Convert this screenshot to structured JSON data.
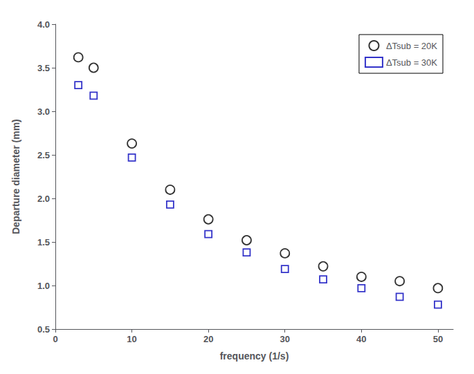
{
  "chart_data": {
    "type": "scatter",
    "x_label": "frequency (1/s)",
    "y_label": "Departure diameter (mm)",
    "x": [
      3,
      5,
      10,
      15,
      20,
      25,
      30,
      35,
      40,
      45,
      50
    ],
    "series": [
      {
        "name": "ΔTsub = 20K",
        "color": "#000000",
        "marker": "circle",
        "values": [
          3.62,
          3.5,
          2.63,
          2.1,
          1.76,
          1.52,
          1.37,
          1.22,
          1.1,
          1.05,
          0.97
        ]
      },
      {
        "name": "ΔTsub = 30K",
        "color": "#0000bb",
        "marker": "square",
        "values": [
          3.3,
          3.18,
          2.47,
          1.93,
          1.59,
          1.38,
          1.19,
          1.07,
          0.97,
          0.87,
          0.78
        ]
      }
    ],
    "xlim": [
      0,
      52
    ],
    "ylim": [
      0.5,
      4.0
    ],
    "xticks": [
      0,
      10,
      20,
      30,
      40,
      50
    ],
    "yticks": [
      0.5,
      {
        "value": 1.0,
        "label": "1.0"
      },
      1.5,
      {
        "value": 2.0,
        "label": "2.0"
      },
      2.5,
      {
        "value": 3.0,
        "label": "3.0"
      },
      3.5,
      {
        "value": 4.0,
        "label": "4.0"
      }
    ],
    "grid": false,
    "legend": "upper right"
  }
}
